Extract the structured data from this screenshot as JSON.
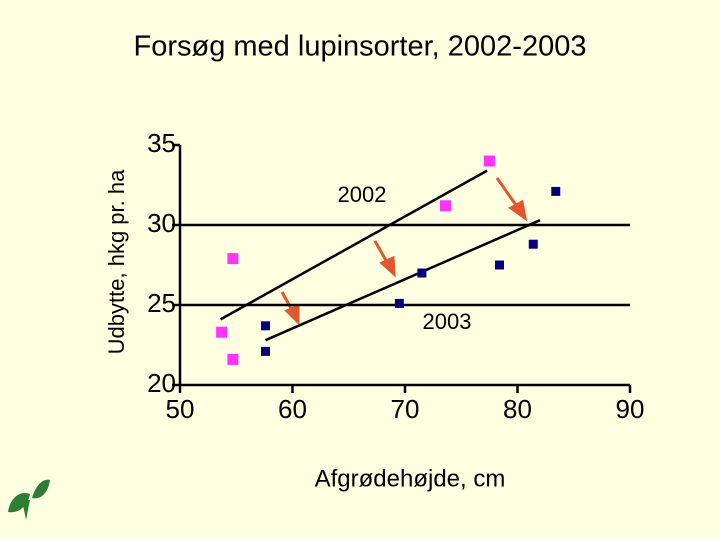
{
  "chart_data": {
    "type": "scatter",
    "title": "Forsøg med lupinsorter, 2002-2003",
    "x_label": "Afgrødehøjde, cm",
    "y_label": "Udbytte, hkg pr. ha",
    "xlim": [
      50,
      90
    ],
    "xticks": [
      50,
      60,
      70,
      80,
      90
    ],
    "ylim": [
      20,
      35
    ],
    "yticks": [
      20,
      25,
      30,
      35
    ],
    "grid": true,
    "series": [
      {
        "name": "2002",
        "color": "#ff33ff",
        "x": [
          53.7,
          54.7,
          54.7,
          73.6,
          77.5
        ],
        "values": [
          23.3,
          27.9,
          21.6,
          31.2,
          34.0
        ],
        "trend_x": [
          53.6,
          77.3
        ],
        "trend_values": [
          24.1,
          33.4
        ]
      },
      {
        "name": "2003",
        "color": "#000080",
        "x": [
          57.6,
          57.6,
          69.5,
          71.5,
          78.4,
          81.4,
          83.4
        ],
        "values": [
          23.7,
          22.1,
          25.1,
          27.0,
          27.5,
          28.8,
          32.1
        ],
        "trend_x": [
          57.6,
          82.0
        ],
        "trend_values": [
          22.8,
          30.3
        ]
      }
    ]
  }
}
